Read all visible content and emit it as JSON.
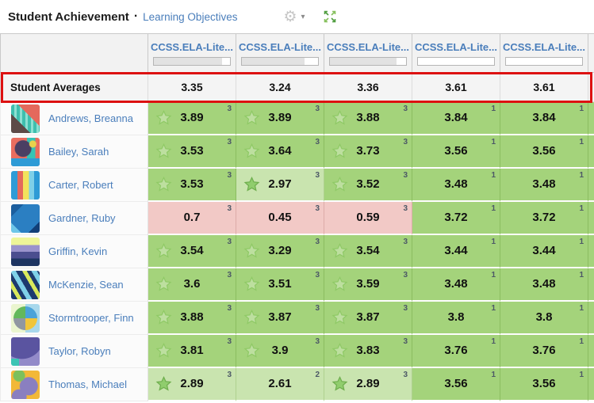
{
  "header": {
    "title": "Student Achievement",
    "separator": "·",
    "subtitle_link": "Learning Objectives",
    "gear_icon": "⚙",
    "caret_icon": "▾"
  },
  "colors": {
    "mastered_green": "#a4d37b",
    "approaching_light_green": "#c9e4af",
    "below_pink": "#f2c9c6",
    "highlight_red": "#dd1111",
    "link_blue": "#4a7ebb"
  },
  "table": {
    "columns": [
      {
        "label": "CCSS.ELA-Lite...",
        "progress_pct": 90
      },
      {
        "label": "CCSS.ELA-Lite...",
        "progress_pct": 82
      },
      {
        "label": "CCSS.ELA-Lite...",
        "progress_pct": 88
      },
      {
        "label": "CCSS.ELA-Lite...",
        "progress_pct": 0
      },
      {
        "label": "CCSS.ELA-Lite...",
        "progress_pct": 0
      }
    ],
    "averages": {
      "label": "Student Averages",
      "values": [
        "3.35",
        "3.24",
        "3.36",
        "3.61",
        "3.61"
      ]
    },
    "students": [
      {
        "name": "Andrews, Breanna",
        "avatar": "triangles-teal-salmon",
        "scores": [
          {
            "v": "3.89",
            "sup": "3",
            "star": "outline",
            "bg": "g"
          },
          {
            "v": "3.89",
            "sup": "3",
            "star": "outline",
            "bg": "g"
          },
          {
            "v": "3.88",
            "sup": "3",
            "star": "outline",
            "bg": "g"
          },
          {
            "v": "3.84",
            "sup": "1",
            "star": "none",
            "bg": "g"
          },
          {
            "v": "3.84",
            "sup": "1",
            "star": "none",
            "bg": "g"
          }
        ]
      },
      {
        "name": "Bailey, Sarah",
        "avatar": "salmon-mushroom-shapes",
        "scores": [
          {
            "v": "3.53",
            "sup": "3",
            "star": "outline",
            "bg": "g"
          },
          {
            "v": "3.64",
            "sup": "3",
            "star": "outline",
            "bg": "g"
          },
          {
            "v": "3.73",
            "sup": "3",
            "star": "outline",
            "bg": "g"
          },
          {
            "v": "3.56",
            "sup": "1",
            "star": "none",
            "bg": "g"
          },
          {
            "v": "3.56",
            "sup": "1",
            "star": "none",
            "bg": "g"
          }
        ]
      },
      {
        "name": "Carter, Robert",
        "avatar": "blue-vertical-stripes",
        "scores": [
          {
            "v": "3.53",
            "sup": "3",
            "star": "outline",
            "bg": "g"
          },
          {
            "v": "2.97",
            "sup": "3",
            "star": "filled",
            "bg": "lg"
          },
          {
            "v": "3.52",
            "sup": "3",
            "star": "outline",
            "bg": "g"
          },
          {
            "v": "3.48",
            "sup": "1",
            "star": "none",
            "bg": "g"
          },
          {
            "v": "3.48",
            "sup": "1",
            "star": "none",
            "bg": "g"
          }
        ]
      },
      {
        "name": "Gardner, Ruby",
        "avatar": "blue-mountain-triangles",
        "scores": [
          {
            "v": "0.7",
            "sup": "3",
            "star": "none",
            "bg": "p"
          },
          {
            "v": "0.45",
            "sup": "3",
            "star": "none",
            "bg": "p"
          },
          {
            "v": "0.59",
            "sup": "3",
            "star": "none",
            "bg": "p"
          },
          {
            "v": "3.72",
            "sup": "1",
            "star": "none",
            "bg": "g"
          },
          {
            "v": "3.72",
            "sup": "1",
            "star": "none",
            "bg": "g"
          }
        ]
      },
      {
        "name": "Griffin, Kevin",
        "avatar": "wavy-yellow-purple-navy",
        "scores": [
          {
            "v": "3.54",
            "sup": "3",
            "star": "outline",
            "bg": "g"
          },
          {
            "v": "3.29",
            "sup": "3",
            "star": "outline",
            "bg": "g"
          },
          {
            "v": "3.54",
            "sup": "3",
            "star": "outline",
            "bg": "g"
          },
          {
            "v": "3.44",
            "sup": "1",
            "star": "none",
            "bg": "g"
          },
          {
            "v": "3.44",
            "sup": "1",
            "star": "none",
            "bg": "g"
          }
        ]
      },
      {
        "name": "McKenzie, Sean",
        "avatar": "navy-diagonal-stripes",
        "scores": [
          {
            "v": "3.6",
            "sup": "3",
            "star": "outline",
            "bg": "g"
          },
          {
            "v": "3.51",
            "sup": "3",
            "star": "outline",
            "bg": "g"
          },
          {
            "v": "3.59",
            "sup": "3",
            "star": "outline",
            "bg": "g"
          },
          {
            "v": "3.48",
            "sup": "1",
            "star": "none",
            "bg": "g"
          },
          {
            "v": "3.48",
            "sup": "1",
            "star": "none",
            "bg": "g"
          }
        ]
      },
      {
        "name": "Stormtrooper, Finn",
        "avatar": "quadrant-circle",
        "scores": [
          {
            "v": "3.88",
            "sup": "3",
            "star": "outline",
            "bg": "g"
          },
          {
            "v": "3.87",
            "sup": "3",
            "star": "outline",
            "bg": "g"
          },
          {
            "v": "3.87",
            "sup": "3",
            "star": "outline",
            "bg": "g"
          },
          {
            "v": "3.8",
            "sup": "1",
            "star": "none",
            "bg": "g"
          },
          {
            "v": "3.8",
            "sup": "1",
            "star": "none",
            "bg": "g"
          }
        ]
      },
      {
        "name": "Taylor, Robyn",
        "avatar": "purple-quarter-circle",
        "scores": [
          {
            "v": "3.81",
            "sup": "3",
            "star": "outline",
            "bg": "g"
          },
          {
            "v": "3.9",
            "sup": "3",
            "star": "outline",
            "bg": "g"
          },
          {
            "v": "3.83",
            "sup": "3",
            "star": "outline",
            "bg": "g"
          },
          {
            "v": "3.76",
            "sup": "1",
            "star": "none",
            "bg": "g"
          },
          {
            "v": "3.76",
            "sup": "1",
            "star": "none",
            "bg": "g"
          }
        ]
      },
      {
        "name": "Thomas, Michael",
        "avatar": "yellow-purple-swirls",
        "scores": [
          {
            "v": "2.89",
            "sup": "3",
            "star": "filled",
            "bg": "lg"
          },
          {
            "v": "2.61",
            "sup": "2",
            "star": "none",
            "bg": "lg"
          },
          {
            "v": "2.89",
            "sup": "3",
            "star": "filled",
            "bg": "lg"
          },
          {
            "v": "3.56",
            "sup": "1",
            "star": "none",
            "bg": "g"
          },
          {
            "v": "3.56",
            "sup": "1",
            "star": "none",
            "bg": "g"
          }
        ]
      }
    ]
  }
}
